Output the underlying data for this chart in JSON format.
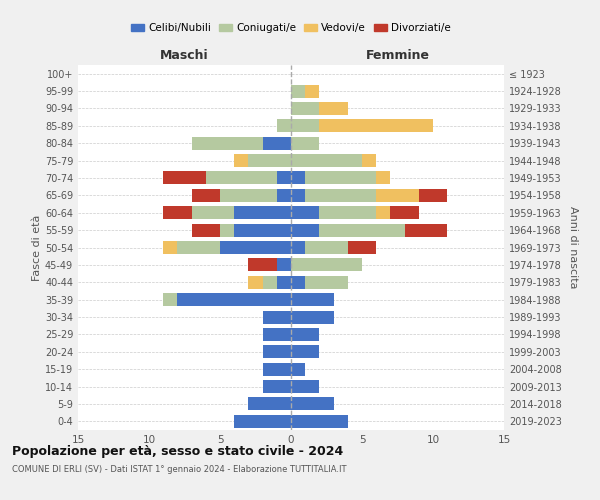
{
  "age_groups": [
    "0-4",
    "5-9",
    "10-14",
    "15-19",
    "20-24",
    "25-29",
    "30-34",
    "35-39",
    "40-44",
    "45-49",
    "50-54",
    "55-59",
    "60-64",
    "65-69",
    "70-74",
    "75-79",
    "80-84",
    "85-89",
    "90-94",
    "95-99",
    "100+"
  ],
  "birth_years": [
    "2019-2023",
    "2014-2018",
    "2009-2013",
    "2004-2008",
    "1999-2003",
    "1994-1998",
    "1989-1993",
    "1984-1988",
    "1979-1983",
    "1974-1978",
    "1969-1973",
    "1964-1968",
    "1959-1963",
    "1954-1958",
    "1949-1953",
    "1944-1948",
    "1939-1943",
    "1934-1938",
    "1929-1933",
    "1924-1928",
    "≤ 1923"
  ],
  "colors": {
    "celibi": "#4472c4",
    "coniugati": "#b5c9a0",
    "vedovi": "#f0c060",
    "divorziati": "#c0392b"
  },
  "maschi": {
    "celibi": [
      4,
      3,
      2,
      2,
      2,
      2,
      2,
      8,
      1,
      1,
      5,
      4,
      4,
      1,
      1,
      0,
      2,
      0,
      0,
      0,
      0
    ],
    "coniugati": [
      0,
      0,
      0,
      0,
      0,
      0,
      0,
      1,
      1,
      0,
      3,
      1,
      3,
      4,
      5,
      3,
      5,
      1,
      0,
      0,
      0
    ],
    "vedovi": [
      0,
      0,
      0,
      0,
      0,
      0,
      0,
      0,
      1,
      0,
      1,
      0,
      0,
      0,
      0,
      1,
      0,
      0,
      0,
      0,
      0
    ],
    "divorziati": [
      0,
      0,
      0,
      0,
      0,
      0,
      0,
      0,
      0,
      2,
      0,
      2,
      2,
      2,
      3,
      0,
      0,
      0,
      0,
      0,
      0
    ]
  },
  "femmine": {
    "celibi": [
      4,
      3,
      2,
      1,
      2,
      2,
      3,
      3,
      1,
      0,
      1,
      2,
      2,
      1,
      1,
      0,
      0,
      0,
      0,
      0,
      0
    ],
    "coniugati": [
      0,
      0,
      0,
      0,
      0,
      0,
      0,
      0,
      3,
      5,
      3,
      6,
      4,
      5,
      5,
      5,
      2,
      2,
      2,
      1,
      0
    ],
    "vedovi": [
      0,
      0,
      0,
      0,
      0,
      0,
      0,
      0,
      0,
      0,
      0,
      0,
      1,
      3,
      1,
      1,
      0,
      8,
      2,
      1,
      0
    ],
    "divorziati": [
      0,
      0,
      0,
      0,
      0,
      0,
      0,
      0,
      0,
      0,
      2,
      3,
      2,
      2,
      0,
      0,
      0,
      0,
      0,
      0,
      0
    ]
  },
  "xlim": 15,
  "title_main": "Popolazione per età, sesso e stato civile - 2024",
  "title_sub": "COMUNE DI ERLI (SV) - Dati ISTAT 1° gennaio 2024 - Elaborazione TUTTITALIA.IT",
  "ylabel_left": "Fasce di età",
  "ylabel_right": "Anni di nascita",
  "xlabel_maschi": "Maschi",
  "xlabel_femmine": "Femmine",
  "legend_labels": [
    "Celibi/Nubili",
    "Coniugati/e",
    "Vedovi/e",
    "Divorziati/e"
  ],
  "bg_color": "#f0f0f0",
  "plot_bg": "#ffffff"
}
